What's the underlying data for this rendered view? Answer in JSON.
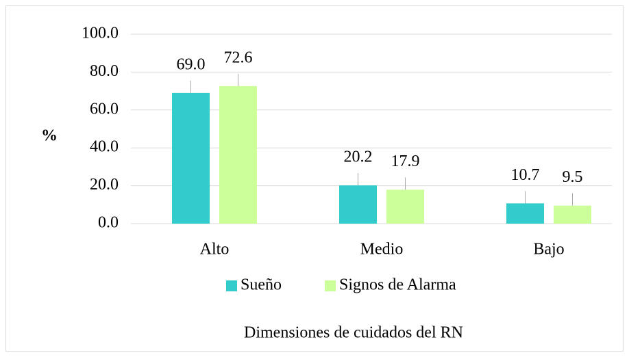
{
  "chart_data": {
    "type": "bar",
    "categories": [
      "Alto",
      "Medio",
      "Bajo"
    ],
    "series": [
      {
        "name": "Sueño",
        "color": "#33cccc",
        "values": [
          69.0,
          20.2,
          10.7
        ],
        "value_labels": [
          "69.0",
          "20.2",
          "10.7"
        ]
      },
      {
        "name": "Signos de Alarma",
        "color": "#ccff99",
        "values": [
          72.6,
          17.9,
          9.5
        ],
        "value_labels": [
          "72.6",
          "17.9",
          "9.5"
        ]
      }
    ],
    "ylabel": "%",
    "xlabel": "Dimensiones de cuidados del RN",
    "ylim": [
      0,
      100
    ],
    "yticks": [
      {
        "value": 0,
        "label": "0.0"
      },
      {
        "value": 20,
        "label": "20.0"
      },
      {
        "value": 40,
        "label": "40.0"
      },
      {
        "value": 60,
        "label": "60.0"
      },
      {
        "value": 80,
        "label": "80.0"
      },
      {
        "value": 100,
        "label": "100.0"
      }
    ],
    "grid": true,
    "legend": "bottom"
  }
}
